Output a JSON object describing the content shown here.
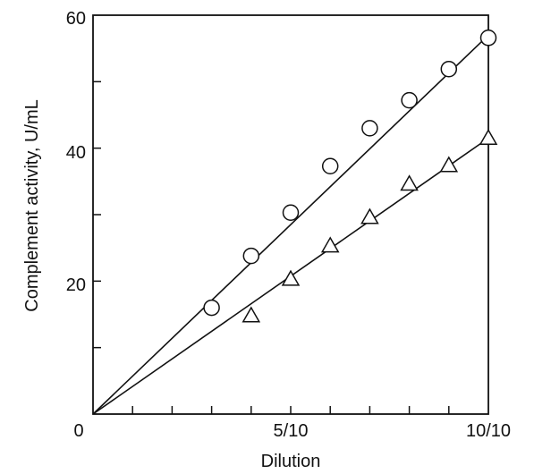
{
  "chart_data": {
    "type": "scatter",
    "title": "",
    "xlabel": "Dilution",
    "ylabel": "Complement activity, U/mL",
    "xlim": [
      0,
      10
    ],
    "ylim": [
      0,
      60
    ],
    "x_tick_labels": [
      "0",
      "5/10",
      "10/10"
    ],
    "y_tick_labels": [
      "20",
      "40",
      "60"
    ],
    "grid": false,
    "series": [
      {
        "marker": "circle",
        "points": [
          [
            3,
            16
          ],
          [
            4,
            23.8
          ],
          [
            5,
            30.3
          ],
          [
            6,
            37.3
          ],
          [
            7,
            43
          ],
          [
            8,
            47.2
          ],
          [
            9,
            51.9
          ],
          [
            10,
            56.6
          ]
        ],
        "fit_line": [
          [
            0,
            0
          ],
          [
            10,
            57
          ]
        ]
      },
      {
        "marker": "triangle",
        "points": [
          [
            4,
            14.8
          ],
          [
            5,
            20.3
          ],
          [
            6,
            25.3
          ],
          [
            7,
            29.6
          ],
          [
            8,
            34.6
          ],
          [
            9,
            37.4
          ],
          [
            10,
            41.5
          ]
        ],
        "fit_line": [
          [
            0,
            0
          ],
          [
            10,
            41.5
          ]
        ]
      }
    ]
  }
}
